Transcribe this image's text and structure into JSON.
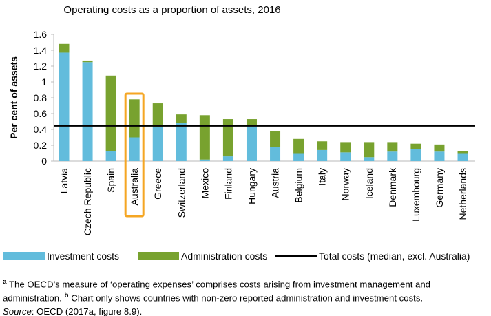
{
  "chart_data": {
    "type": "bar",
    "stacked": true,
    "title": "Operating costs as a proportion of assets, 2016",
    "ylabel": "Per cent of assets",
    "xlabel": "",
    "ylim": [
      0,
      1.6
    ],
    "yticks": [
      "0",
      "0.2",
      "0.4",
      "0.6",
      "0.8",
      "1",
      "1.2",
      "1.4",
      "1.6"
    ],
    "grid": false,
    "legend_position": "bottom",
    "categories": [
      "Latvia",
      "Czech Republic",
      "Spain",
      "Australia",
      "Greece",
      "Switzerland",
      "Mexico",
      "Finland",
      "Hungary",
      "Austria",
      "Belgium",
      "Italy",
      "Norway",
      "Iceland",
      "Denmark",
      "Luxembourg",
      "Germany",
      "Netherlands"
    ],
    "highlighted_category": "Australia",
    "series": [
      {
        "name": "Investment costs",
        "color": "#62bcdc",
        "values": [
          1.37,
          1.25,
          0.13,
          0.3,
          0.43,
          0.48,
          0.02,
          0.06,
          0.44,
          0.18,
          0.1,
          0.14,
          0.11,
          0.05,
          0.12,
          0.15,
          0.12,
          0.1
        ]
      },
      {
        "name": "Administration costs",
        "color": "#78a22f",
        "values": [
          0.11,
          0.02,
          0.95,
          0.48,
          0.3,
          0.11,
          0.56,
          0.47,
          0.09,
          0.2,
          0.18,
          0.11,
          0.13,
          0.19,
          0.12,
          0.07,
          0.09,
          0.03
        ]
      }
    ],
    "reference_line": {
      "name": "Total costs (median, excl. Australia)",
      "value": 0.445,
      "color": "#000000"
    },
    "highlight_color": "#f5a623"
  },
  "notes": {
    "a_marker": "a",
    "a_text": " The OECD’s measure of ‘operating expenses’ comprises costs arising from investment management and administration. ",
    "b_marker": "b",
    "b_text": " Chart only shows countries with non-zero reported administration and investment costs.",
    "source_label": "Source",
    "source_text": ": OECD (2017a, figure 8.9)."
  }
}
